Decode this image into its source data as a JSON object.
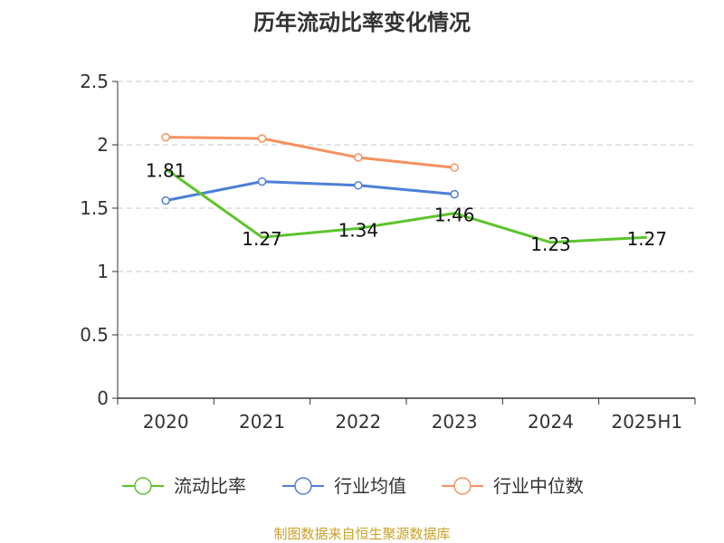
{
  "chart_data": {
    "type": "line",
    "title": "历年流动比率变化情况",
    "categories": [
      "2020",
      "2021",
      "2022",
      "2023",
      "2024",
      "2025H1"
    ],
    "ylim": [
      0,
      2.5
    ],
    "yticks": [
      "0",
      "0.5",
      "1",
      "1.5",
      "2",
      "2.5"
    ],
    "grid": "horizontal-dashed",
    "legend_position": "bottom",
    "series": [
      {
        "name": "流动比率",
        "color": "#5cc42b",
        "values": [
          1.81,
          1.27,
          1.34,
          1.46,
          1.23,
          1.27
        ],
        "labels": [
          "1.81",
          "1.27",
          "1.34",
          "1.46",
          "1.23",
          "1.27"
        ]
      },
      {
        "name": "行业均值",
        "color": "#4e7fd8",
        "values": [
          1.56,
          1.71,
          1.68,
          1.61,
          null,
          null
        ]
      },
      {
        "name": "行业中位数",
        "color": "#f5925f",
        "values": [
          2.06,
          2.05,
          1.9,
          1.82,
          null,
          null
        ]
      }
    ],
    "source": "制图数据来自恒生聚源数据库"
  }
}
